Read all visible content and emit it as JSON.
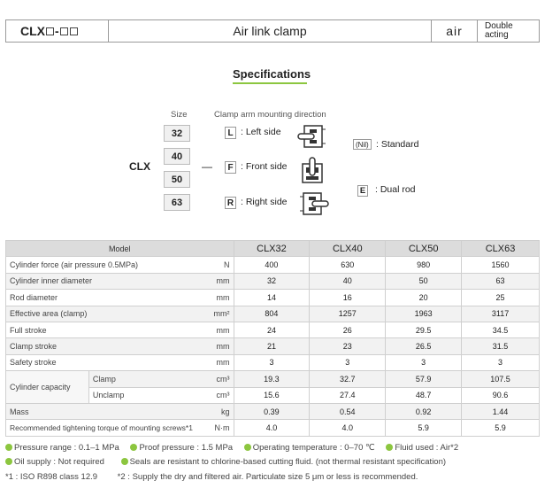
{
  "header": {
    "model_code": "CLX",
    "model_sep": "-",
    "title": "Air link clamp",
    "medium": "air",
    "action_line1": "Double",
    "action_line2": "acting"
  },
  "spec_title": "Specifications",
  "code": {
    "size_label": "Size",
    "direction_label": "Clamp arm mounting direction",
    "prefix": "CLX",
    "dash": "—",
    "sizes": [
      "32",
      "40",
      "50",
      "63"
    ],
    "directions": [
      {
        "letter": "L",
        "text": ": Left side"
      },
      {
        "letter": "F",
        "text": ": Front side"
      },
      {
        "letter": "R",
        "text": ": Right side"
      }
    ],
    "option_nil": "(Nil)",
    "option_nil_text": ": Standard",
    "option_e": "E",
    "option_e_text": ": Dual rod"
  },
  "table": {
    "model_header": "Model",
    "columns": [
      "CLX32",
      "CLX40",
      "CLX50",
      "CLX63"
    ],
    "rows": [
      {
        "label": "Cylinder force (air pressure 0.5MPa)",
        "unit": "N",
        "values": [
          "400",
          "630",
          "980",
          "1560"
        ]
      },
      {
        "label": "Cylinder inner diameter",
        "unit": "mm",
        "values": [
          "32",
          "40",
          "50",
          "63"
        ]
      },
      {
        "label": "Rod diameter",
        "unit": "mm",
        "values": [
          "14",
          "16",
          "20",
          "25"
        ]
      },
      {
        "label": "Effective area (clamp)",
        "unit": "mm²",
        "values": [
          "804",
          "1257",
          "1963",
          "3117"
        ]
      },
      {
        "label": "Full stroke",
        "unit": "mm",
        "values": [
          "24",
          "26",
          "29.5",
          "34.5"
        ]
      },
      {
        "label": "Clamp stroke",
        "unit": "mm",
        "values": [
          "21",
          "23",
          "26.5",
          "31.5"
        ]
      },
      {
        "label": "Safety stroke",
        "unit": "mm",
        "values": [
          "3",
          "3",
          "3",
          "3"
        ]
      }
    ],
    "capacity": {
      "label": "Cylinder capacity",
      "clamp_label": "Clamp",
      "clamp_unit": "cm³",
      "clamp_values": [
        "19.3",
        "32.7",
        "57.9",
        "107.5"
      ],
      "unclamp_label": "Unclamp",
      "unclamp_unit": "cm³",
      "unclamp_values": [
        "15.6",
        "27.4",
        "48.7",
        "90.6"
      ]
    },
    "mass": {
      "label": "Mass",
      "unit": "kg",
      "values": [
        "0.39",
        "0.54",
        "0.92",
        "1.44"
      ]
    },
    "torque": {
      "label": "Recommended tightening torque of mounting screws*1",
      "unit": "N·m",
      "values": [
        "4.0",
        "4.0",
        "5.9",
        "5.9"
      ]
    }
  },
  "notes": {
    "pressure": "Pressure range : 0.1–1 MPa",
    "proof": "Proof pressure : 1.5 MPa",
    "temp": "Operating temperature : 0–70 ℃",
    "fluid": "Fluid used : Air*2",
    "oil": "Oil supply : Not required",
    "seals": "Seals are resistant to chlorine-based cutting fluid. (not thermal resistant specification)",
    "fn1": "*1 : ISO R898 class 12.9",
    "fn2": "*2 : Supply the dry and filtered air. Particulate size 5 μm or less is recommended."
  },
  "colors": {
    "accent": "#8cc63f",
    "header_gray": "#dcdcdc",
    "row_alt": "#f2f2f2"
  }
}
